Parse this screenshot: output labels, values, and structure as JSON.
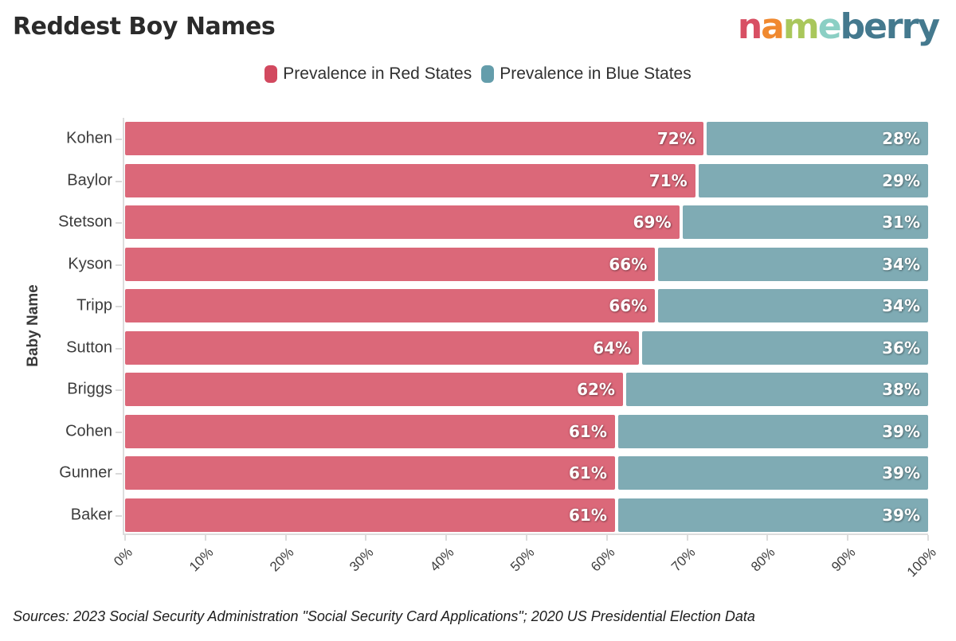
{
  "header": {
    "title": "Reddest Boy Names",
    "logo": {
      "text": "nameberry",
      "letters": [
        {
          "ch": "n",
          "color": "#d84f63"
        },
        {
          "ch": "a",
          "color": "#f0892f"
        },
        {
          "ch": "m",
          "color": "#a9c75b"
        },
        {
          "ch": "e",
          "color": "#8bcfc4"
        },
        {
          "ch": "b",
          "color": "#44798e"
        },
        {
          "ch": "e",
          "color": "#44798e"
        },
        {
          "ch": "r",
          "color": "#44798e"
        },
        {
          "ch": "r",
          "color": "#44798e"
        },
        {
          "ch": "y",
          "color": "#44798e"
        }
      ]
    }
  },
  "legend": {
    "items": [
      {
        "label": "Prevalence in Red States",
        "color": "#d2495f"
      },
      {
        "label": "Prevalence in Blue States",
        "color": "#649dab"
      }
    ]
  },
  "chart_data": {
    "type": "bar",
    "orientation": "horizontal",
    "stacked": true,
    "title": "Reddest Boy Names",
    "xlabel": "",
    "ylabel": "Baby Name",
    "xlim": [
      0,
      100
    ],
    "grid": false,
    "legend_position": "top-center",
    "value_suffix": "%",
    "categories": [
      "Kohen",
      "Baylor",
      "Stetson",
      "Kyson",
      "Tripp",
      "Sutton",
      "Briggs",
      "Cohen",
      "Gunner",
      "Baker"
    ],
    "series": [
      {
        "name": "Prevalence in Red States",
        "color": "#db6879",
        "values": [
          72,
          71,
          69,
          66,
          66,
          64,
          62,
          61,
          61,
          61
        ]
      },
      {
        "name": "Prevalence in Blue States",
        "color": "#7fabb4",
        "values": [
          28,
          29,
          31,
          34,
          34,
          36,
          38,
          39,
          39,
          39
        ]
      }
    ],
    "x_ticks": [
      "0%",
      "10%",
      "20%",
      "30%",
      "40%",
      "50%",
      "60%",
      "70%",
      "80%",
      "90%",
      "100%"
    ]
  },
  "footer": {
    "source": "Sources: 2023 Social Security Administration \"Social Security Card Applications\"; 2020 US Presidential Election Data"
  }
}
